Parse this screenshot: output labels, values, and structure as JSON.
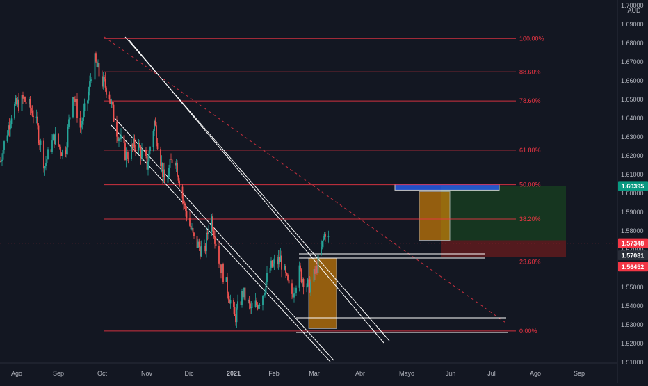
{
  "colors": {
    "background": "#131722",
    "up": "#26a69a",
    "down": "#ef5350",
    "fib": "#f23645",
    "channel": "#ffffff",
    "target_zone": "#1b5e20",
    "stop_zone": "#7f1d1d",
    "blue_zone": "#2962ff",
    "orange_zone": "#ff9800",
    "axis_text": "#b2b5be",
    "green_badge": "#089981",
    "red_badge": "#f23645",
    "dark_badge": "#2a2e39"
  },
  "currency_label": "AUD",
  "chart_data": {
    "type": "candlestick",
    "title": "",
    "x_axis": {
      "tick_labels": [
        "Ago",
        "Sep",
        "Oct",
        "Nov",
        "Dic",
        "2021",
        "Feb",
        "Mar",
        "Abr",
        "Mayo",
        "Jun",
        "Jul",
        "Ago",
        "Sep"
      ],
      "date_range": [
        "2020-07-20",
        "2021-09-25"
      ]
    },
    "y_axis": {
      "tick_labels": [
        "1.70000",
        "1.69000",
        "1.68000",
        "1.67000",
        "1.66000",
        "1.65000",
        "1.64000",
        "1.63000",
        "1.62000",
        "1.61000",
        "1.60000",
        "1.59000",
        "1.58000",
        "1.57000",
        "1.56000",
        "1.55000",
        "1.54000",
        "1.53000",
        "1.52000",
        "1.51000"
      ],
      "range": [
        1.51,
        1.7
      ]
    },
    "price_path": [
      [
        "2020-07-20",
        1.617
      ],
      [
        "2020-08-01",
        1.645
      ],
      [
        "2020-08-12",
        1.65
      ],
      [
        "2020-08-22",
        1.642
      ],
      [
        "2020-09-01",
        1.615
      ],
      [
        "2020-09-10",
        1.63
      ],
      [
        "2020-09-20",
        1.62
      ],
      [
        "2020-09-28",
        1.655
      ],
      [
        "2020-10-05",
        1.635
      ],
      [
        "2020-10-12",
        1.65
      ],
      [
        "2020-10-18",
        1.672
      ],
      [
        "2020-10-25",
        1.66
      ],
      [
        "2020-11-01",
        1.655
      ],
      [
        "2020-11-08",
        1.635
      ],
      [
        "2020-11-18",
        1.62
      ],
      [
        "2020-11-28",
        1.627
      ],
      [
        "2020-12-08",
        1.615
      ],
      [
        "2020-12-15",
        1.638
      ],
      [
        "2020-12-25",
        1.605
      ],
      [
        "2021-01-03",
        1.622
      ],
      [
        "2021-01-12",
        1.595
      ],
      [
        "2021-01-22",
        1.575
      ],
      [
        "2021-02-01",
        1.568
      ],
      [
        "2021-02-07",
        1.59
      ],
      [
        "2021-02-15",
        1.565
      ],
      [
        "2021-02-25",
        1.545
      ],
      [
        "2021-03-02",
        1.533
      ],
      [
        "2021-03-10",
        1.547
      ],
      [
        "2021-03-18",
        1.537
      ],
      [
        "2021-03-28",
        1.545
      ],
      [
        "2021-04-05",
        1.56
      ],
      [
        "2021-04-15",
        1.565
      ],
      [
        "2021-04-25",
        1.545
      ],
      [
        "2021-05-03",
        1.558
      ],
      [
        "2021-05-12",
        1.55
      ],
      [
        "2021-05-18",
        1.557
      ],
      [
        "2021-05-24",
        1.57
      ],
      [
        "2021-05-28",
        1.58
      ],
      [
        "2021-06-01",
        1.5735
      ]
    ],
    "fibonacci": [
      {
        "level": "100.00%",
        "price": 1.6825
      },
      {
        "level": "88.60%",
        "price": 1.6647
      },
      {
        "level": "78.60%",
        "price": 1.6492
      },
      {
        "level": "61.80%",
        "price": 1.623
      },
      {
        "level": "50.00%",
        "price": 1.6046
      },
      {
        "level": "38.20%",
        "price": 1.5863
      },
      {
        "level": "23.60%",
        "price": 1.5635
      },
      {
        "level": "0.00%",
        "price": 1.5267
      }
    ],
    "price_labels": {
      "target": "1.60395",
      "current": "1.57348",
      "countdown": "09:16:07",
      "entry": "1.57081",
      "stop": "1.56452"
    }
  }
}
